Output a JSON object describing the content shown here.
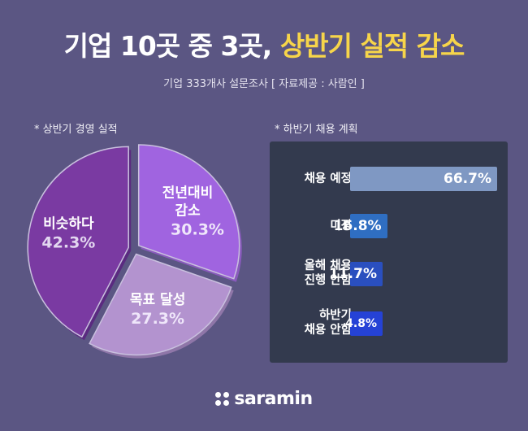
{
  "header": {
    "title_main": "기업 10곳 중 3곳,",
    "title_highlight": "상반기 실적 감소",
    "subtitle": "기업 333개사 설문조사 [ 자료제공 : 사람인 ]"
  },
  "chart_data": [
    {
      "type": "pie",
      "title": "* 상반기 경영 실적",
      "slices": [
        {
          "label": [
            "전년대비",
            "감소"
          ],
          "value": 30.3,
          "display": "30.3%",
          "color": "#a064e0"
        },
        {
          "label": [
            "목표 달성"
          ],
          "value": 27.3,
          "display": "27.3%",
          "color": "#b393cf"
        },
        {
          "label": [
            "비슷하다"
          ],
          "value": 42.3,
          "display": "42.3%",
          "color": "#7a3aa2"
        }
      ]
    },
    {
      "type": "bar",
      "title": "* 하반기 채용 계획",
      "orientation": "horizontal",
      "bars": [
        {
          "label": [
            "채용 예정"
          ],
          "value": 66.7,
          "display": "66.7%",
          "color": "#7f98c3"
        },
        {
          "label": [
            "미정"
          ],
          "value": 16.8,
          "display": "16.8%",
          "color": "#2f6ec2"
        },
        {
          "label": [
            "올해 채용",
            "진행 안함"
          ],
          "value": 11.7,
          "display": "11.7%",
          "color": "#2a4fbf"
        },
        {
          "label": [
            "하반기",
            "채용 안함"
          ],
          "value": 4.8,
          "display": "4.8%",
          "color": "#2542d6"
        }
      ]
    }
  ],
  "footer": {
    "logo_text": "saramin",
    "logo_icon": "four-dots-icon"
  }
}
